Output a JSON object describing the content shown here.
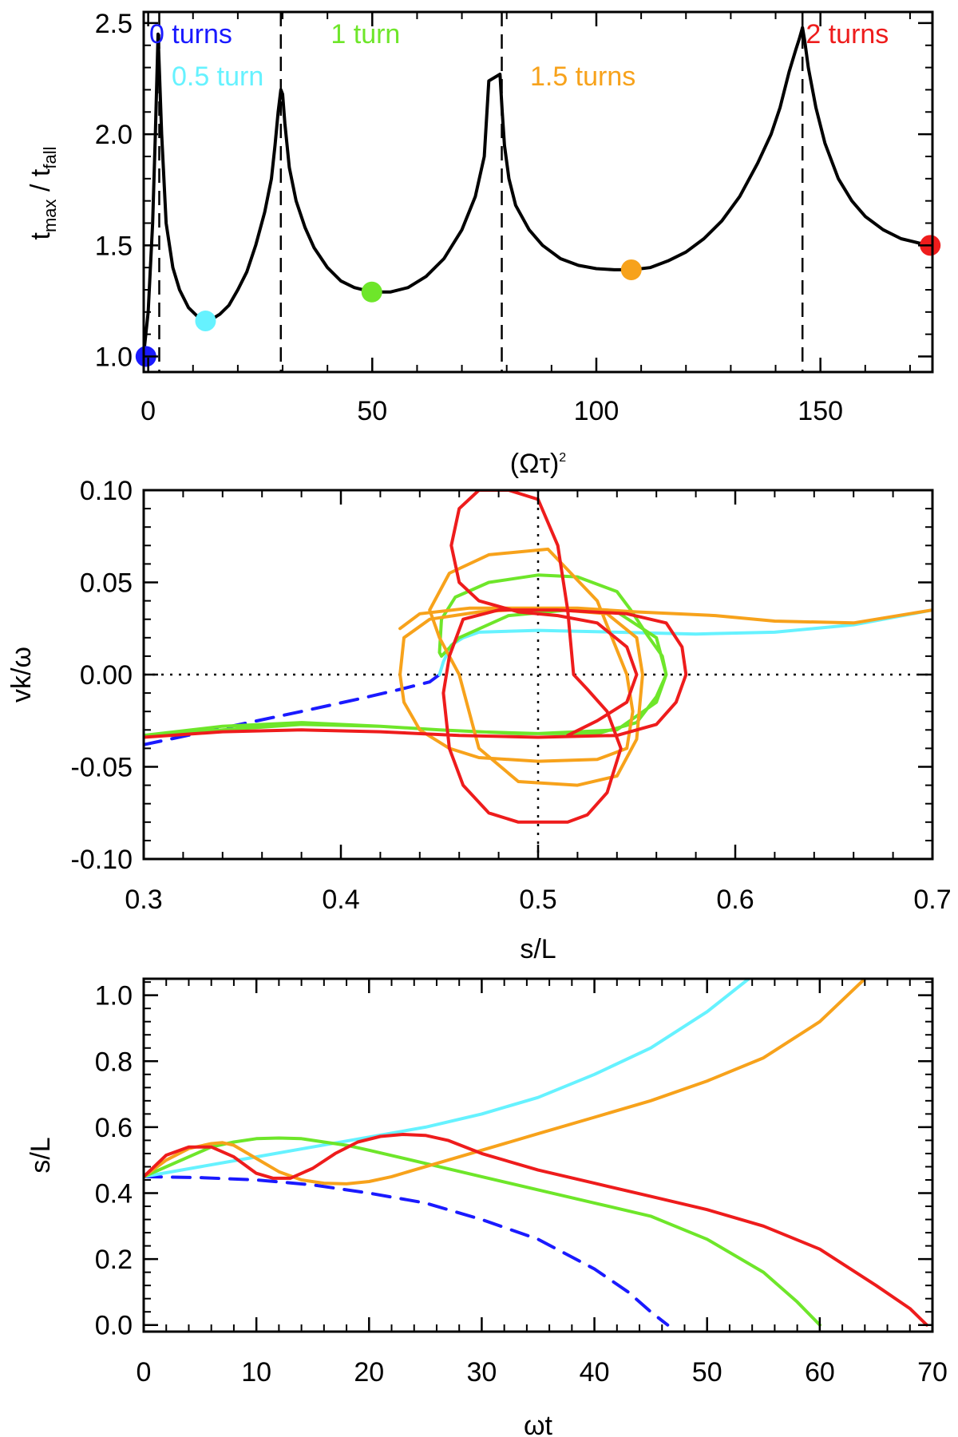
{
  "colors": {
    "blue": "#1a1aff",
    "cyan": "#66f2ff",
    "green": "#6ee62a",
    "orange": "#f7a21b",
    "red": "#ee1c1c",
    "black": "#000000"
  },
  "chart_data": [
    {
      "type": "line",
      "id": "top",
      "title": "",
      "xlabel": "(Ωτ)",
      "xlabel_sup": "2",
      "ylabel": "t",
      "ylabel_sub1": "max",
      "ylabel_mid": " / t",
      "ylabel_sub2": "fall",
      "xlim": [
        -1,
        175
      ],
      "ylim": [
        0.93,
        2.55
      ],
      "xticks": [
        0,
        50,
        100,
        150
      ],
      "xtick_labels": [
        "0",
        "50",
        "100",
        "150"
      ],
      "yticks": [
        1.0,
        1.5,
        2.0,
        2.5
      ],
      "ytick_labels": [
        "1.0",
        "1.5",
        "2.0",
        "2.5"
      ],
      "grid": false,
      "vlines": [
        2.47,
        29.6,
        78.9,
        146.0
      ],
      "series": [
        {
          "color": "black",
          "x": [
            -1,
            0,
            1,
            1.6,
            2.2,
            3,
            4,
            5.5,
            7,
            9,
            11,
            12,
            14,
            16,
            18,
            20,
            22,
            24,
            26,
            27.5,
            28.3,
            29,
            29.6,
            30,
            30.5,
            31.5,
            33,
            35,
            37,
            40,
            43,
            46,
            50,
            54,
            58,
            62,
            66,
            70,
            73,
            75,
            76,
            78.5,
            79,
            79.5,
            80.5,
            82,
            85,
            88,
            92,
            96,
            100,
            104,
            108,
            112,
            116,
            120,
            124,
            128,
            132,
            136,
            139,
            141,
            143,
            144.5,
            145.3,
            146,
            146.5,
            147.3,
            149,
            151,
            154,
            157,
            160,
            164,
            168,
            172,
            175
          ],
          "y": [
            1.01,
            1.2,
            1.6,
            2.0,
            2.45,
            2.0,
            1.6,
            1.4,
            1.3,
            1.22,
            1.18,
            1.16,
            1.165,
            1.19,
            1.23,
            1.3,
            1.38,
            1.5,
            1.65,
            1.8,
            1.95,
            2.1,
            2.2,
            2.18,
            2.05,
            1.85,
            1.7,
            1.58,
            1.49,
            1.4,
            1.34,
            1.31,
            1.29,
            1.29,
            1.31,
            1.36,
            1.44,
            1.57,
            1.72,
            1.9,
            2.24,
            2.27,
            2.1,
            1.95,
            1.8,
            1.68,
            1.57,
            1.5,
            1.44,
            1.41,
            1.395,
            1.39,
            1.39,
            1.4,
            1.43,
            1.47,
            1.53,
            1.61,
            1.72,
            1.87,
            2.0,
            2.12,
            2.28,
            2.38,
            2.43,
            2.48,
            2.42,
            2.3,
            2.12,
            1.96,
            1.8,
            1.7,
            1.63,
            1.57,
            1.53,
            1.51,
            1.5
          ]
        }
      ],
      "markers": [
        {
          "color": "blue",
          "x": -0.5,
          "y": 1.0
        },
        {
          "color": "cyan",
          "x": 12.8,
          "y": 1.16
        },
        {
          "color": "green",
          "x": 49.9,
          "y": 1.29
        },
        {
          "color": "orange",
          "x": 107.8,
          "y": 1.39
        },
        {
          "color": "red",
          "x": 174.5,
          "y": 1.5
        }
      ],
      "annotations": [
        {
          "text": "0 turns",
          "color": "blue",
          "x": 9.5,
          "y": 2.41
        },
        {
          "text": "1 turn",
          "color": "green",
          "x": 48.5,
          "y": 2.41
        },
        {
          "text": "0.5 turn",
          "color": "cyan",
          "x": 15.5,
          "y": 2.22
        },
        {
          "text": "1.5 turns",
          "color": "orange",
          "x": 97,
          "y": 2.22
        },
        {
          "text": "2 turns",
          "color": "red",
          "x": 156,
          "y": 2.41
        }
      ]
    },
    {
      "type": "line",
      "id": "middle",
      "title": "",
      "xlabel": "s/L",
      "ylabel": "vk/ω",
      "xlim": [
        0.3,
        0.7
      ],
      "ylim": [
        -0.1,
        0.1
      ],
      "xticks": [
        0.3,
        0.4,
        0.5,
        0.6,
        0.7
      ],
      "xtick_labels": [
        "0.3",
        "0.4",
        "0.5",
        "0.6",
        "0.7"
      ],
      "yticks": [
        -0.1,
        -0.05,
        0.0,
        0.05,
        0.1
      ],
      "ytick_labels": [
        "-0.10",
        "-0.05",
        "0.00",
        "0.05",
        "0.10"
      ],
      "grid": false,
      "refline_x": 0.5,
      "refline_y": 0.0,
      "series": [
        {
          "color": "blue",
          "dashed": true,
          "x": [
            0.3,
            0.34,
            0.38,
            0.41,
            0.43,
            0.445,
            0.45
          ],
          "y": [
            -0.038,
            -0.029,
            -0.02,
            -0.013,
            -0.008,
            -0.004,
            0.0
          ]
        },
        {
          "color": "cyan",
          "x": [
            0.45,
            0.452,
            0.456,
            0.462,
            0.47,
            0.5,
            0.54,
            0.58,
            0.62,
            0.66,
            0.7
          ],
          "y": [
            0.0,
            0.007,
            0.016,
            0.02,
            0.023,
            0.024,
            0.023,
            0.022,
            0.023,
            0.027,
            0.035
          ]
        },
        {
          "color": "green",
          "x": [
            0.3,
            0.34,
            0.38,
            0.42,
            0.45,
            0.49,
            0.53,
            0.55,
            0.56,
            0.565,
            0.563,
            0.555,
            0.547,
            0.54,
            0.52,
            0.5,
            0.475,
            0.458,
            0.451,
            0.45,
            0.451,
            0.46,
            0.485,
            0.515,
            0.54,
            0.56,
            0.565,
            0.56,
            0.54,
            0.5,
            0.47,
            0.45,
            0.42,
            0.38,
            0.34,
            0.3
          ],
          "y": [
            -0.033,
            -0.028,
            -0.026,
            -0.028,
            -0.03,
            -0.032,
            -0.032,
            -0.026,
            -0.012,
            0.0,
            0.01,
            0.022,
            0.035,
            0.045,
            0.053,
            0.054,
            0.05,
            0.042,
            0.03,
            0.012,
            0.01,
            0.02,
            0.032,
            0.035,
            0.034,
            0.02,
            0.0,
            -0.015,
            -0.03,
            -0.032,
            -0.031,
            -0.03,
            -0.028,
            -0.027,
            -0.03,
            -0.033
          ]
        },
        {
          "color": "orange",
          "x": [
            0.7,
            0.66,
            0.62,
            0.59,
            0.57,
            0.55,
            0.52,
            0.5,
            0.47,
            0.445,
            0.432,
            0.43,
            0.432,
            0.44,
            0.455,
            0.47,
            0.5,
            0.53,
            0.545,
            0.548,
            0.545,
            0.53,
            0.505,
            0.475,
            0.455,
            0.445,
            0.45,
            0.46,
            0.47,
            0.49,
            0.52,
            0.54,
            0.55,
            0.553,
            0.55,
            0.535,
            0.5,
            0.465,
            0.44,
            0.43
          ],
          "y": [
            0.035,
            0.028,
            0.029,
            0.032,
            0.033,
            0.034,
            0.036,
            0.036,
            0.034,
            0.03,
            0.02,
            0.0,
            -0.015,
            -0.03,
            -0.04,
            -0.045,
            -0.047,
            -0.046,
            -0.04,
            -0.02,
            0.0,
            0.04,
            0.068,
            0.065,
            0.055,
            0.035,
            0.02,
            0.0,
            -0.04,
            -0.058,
            -0.06,
            -0.055,
            -0.035,
            0.0,
            0.02,
            0.033,
            0.036,
            0.036,
            0.033,
            0.025
          ]
        },
        {
          "color": "red",
          "x": [
            0.3,
            0.34,
            0.38,
            0.42,
            0.46,
            0.5,
            0.54,
            0.56,
            0.57,
            0.575,
            0.573,
            0.565,
            0.545,
            0.51,
            0.48,
            0.462,
            0.455,
            0.452,
            0.455,
            0.462,
            0.475,
            0.49,
            0.5,
            0.515,
            0.525,
            0.535,
            0.542,
            0.535,
            0.525,
            0.518,
            0.515,
            0.51,
            0.5,
            0.485,
            0.47,
            0.46,
            0.456,
            0.46,
            0.47,
            0.49,
            0.51,
            0.53,
            0.545,
            0.55,
            0.545,
            0.53,
            0.515
          ],
          "y": [
            -0.034,
            -0.031,
            -0.03,
            -0.031,
            -0.033,
            -0.034,
            -0.033,
            -0.027,
            -0.015,
            0.0,
            0.015,
            0.028,
            0.033,
            0.035,
            0.035,
            0.03,
            0.01,
            -0.01,
            -0.04,
            -0.06,
            -0.075,
            -0.08,
            -0.08,
            -0.08,
            -0.076,
            -0.064,
            -0.04,
            -0.02,
            -0.008,
            0.0,
            0.035,
            0.07,
            0.095,
            0.1,
            0.1,
            0.09,
            0.07,
            0.05,
            0.04,
            0.034,
            0.032,
            0.028,
            0.015,
            0.0,
            -0.015,
            -0.025,
            -0.033
          ]
        }
      ]
    },
    {
      "type": "line",
      "id": "bottom",
      "title": "",
      "xlabel": "ωt",
      "ylabel": "s/L",
      "xlim": [
        0,
        70
      ],
      "ylim": [
        -0.02,
        1.05
      ],
      "xticks": [
        0,
        10,
        20,
        30,
        40,
        50,
        60,
        70
      ],
      "xtick_labels": [
        "0",
        "10",
        "20",
        "30",
        "40",
        "50",
        "60",
        "70"
      ],
      "yticks": [
        0.0,
        0.2,
        0.4,
        0.6,
        0.8,
        1.0
      ],
      "ytick_labels": [
        "0.0",
        "0.2",
        "0.4",
        "0.6",
        "0.8",
        "1.0"
      ],
      "grid": false,
      "series": [
        {
          "color": "blue",
          "dashed": true,
          "x": [
            0,
            5,
            10,
            15,
            20,
            25,
            30,
            35,
            40,
            43,
            45,
            46.5
          ],
          "y": [
            0.45,
            0.447,
            0.44,
            0.425,
            0.4,
            0.37,
            0.32,
            0.26,
            0.17,
            0.1,
            0.04,
            0.0
          ]
        },
        {
          "color": "cyan",
          "x": [
            0,
            5,
            10,
            15,
            20,
            25,
            30,
            35,
            40,
            45,
            50,
            53.7
          ],
          "y": [
            0.45,
            0.48,
            0.51,
            0.54,
            0.57,
            0.6,
            0.64,
            0.69,
            0.76,
            0.84,
            0.95,
            1.05
          ]
        },
        {
          "color": "green",
          "x": [
            0,
            2,
            4,
            6,
            8,
            10,
            12,
            14,
            16,
            18,
            20,
            25,
            30,
            35,
            40,
            45,
            50,
            55,
            58,
            60
          ],
          "y": [
            0.45,
            0.48,
            0.51,
            0.54,
            0.555,
            0.565,
            0.567,
            0.565,
            0.555,
            0.545,
            0.53,
            0.49,
            0.45,
            0.41,
            0.37,
            0.33,
            0.26,
            0.16,
            0.07,
            0.0
          ]
        },
        {
          "color": "orange",
          "x": [
            0,
            2,
            4,
            6,
            7,
            8,
            10,
            12,
            14,
            16,
            18,
            20,
            22,
            24,
            27,
            30,
            35,
            40,
            45,
            50,
            55,
            60,
            64
          ],
          "y": [
            0.45,
            0.5,
            0.535,
            0.55,
            0.553,
            0.545,
            0.505,
            0.465,
            0.44,
            0.43,
            0.428,
            0.435,
            0.45,
            0.47,
            0.5,
            0.53,
            0.58,
            0.63,
            0.68,
            0.74,
            0.81,
            0.92,
            1.05
          ]
        },
        {
          "color": "red",
          "x": [
            0,
            2,
            4,
            6,
            8,
            10,
            11.5,
            13,
            15,
            17,
            19,
            21,
            23,
            25,
            27,
            30,
            35,
            40,
            45,
            50,
            55,
            60,
            65,
            68,
            69.5
          ],
          "y": [
            0.45,
            0.515,
            0.54,
            0.54,
            0.51,
            0.46,
            0.445,
            0.445,
            0.475,
            0.52,
            0.555,
            0.572,
            0.578,
            0.575,
            0.56,
            0.52,
            0.47,
            0.43,
            0.39,
            0.35,
            0.3,
            0.23,
            0.12,
            0.05,
            0.0
          ]
        }
      ]
    }
  ]
}
